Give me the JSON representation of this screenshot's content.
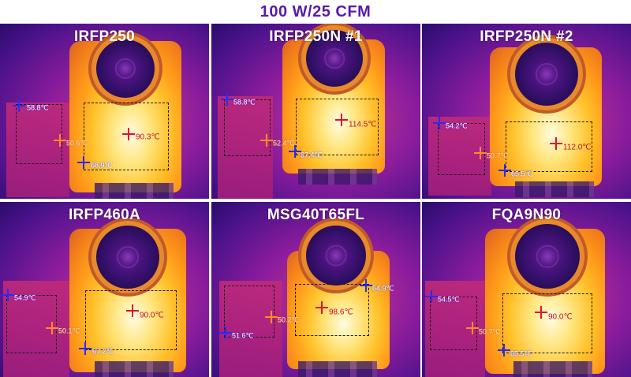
{
  "title": "100 W/25 CFM",
  "panels": [
    {
      "label": "IRFP250",
      "temps": {
        "red": "90.3℃",
        "blue_top": "58.8℃",
        "orange": "50.6℃",
        "blue_bottom": "68.9℃"
      }
    },
    {
      "label": "IRFP250N #1",
      "temps": {
        "red": "114.5℃",
        "blue_top": "58.8℃",
        "orange": "52.4℃",
        "blue_bottom": "67.4℃"
      }
    },
    {
      "label": "IRFP250N #2",
      "temps": {
        "red": "112.0℃",
        "blue_top": "54.2℃",
        "orange": "50.7℃",
        "blue_bottom": "65.5℃"
      }
    },
    {
      "label": "IRFP460A",
      "temps": {
        "red": "90.0℃",
        "blue_top": "54.9℃",
        "orange": "50.1℃",
        "blue_bottom": "67.2℃"
      }
    },
    {
      "label": "MSG40T65FL",
      "temps": {
        "red": "98.6℃",
        "blue_top": "64.9℃",
        "orange": "50.2℃",
        "blue_bottom": "51.6℃"
      }
    },
    {
      "label": "FQA9N90",
      "temps": {
        "red": "90.0℃",
        "blue_top": "54.5℃",
        "orange": "50.7℃",
        "blue_bottom": "65.5℃"
      }
    }
  ]
}
